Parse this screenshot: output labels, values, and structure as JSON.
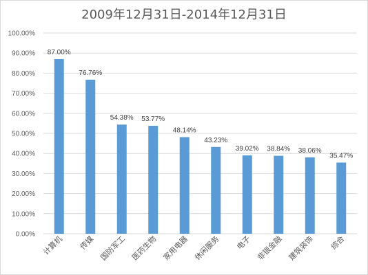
{
  "chart_data": {
    "type": "bar",
    "title": "2009年12月31日-2014年12月31日",
    "categories": [
      "计算机",
      "传媒",
      "国防军工",
      "医药生物",
      "家用电器",
      "休闲服务",
      "电子",
      "非银金融",
      "建筑装饰",
      "综合"
    ],
    "values": [
      87.0,
      76.76,
      54.38,
      53.77,
      48.14,
      43.23,
      39.02,
      38.84,
      38.06,
      35.47
    ],
    "data_labels": [
      "87.00%",
      "76.76%",
      "54.38%",
      "53.77%",
      "48.14%",
      "43.23%",
      "39.02%",
      "38.84%",
      "38.06%",
      "35.47%"
    ],
    "y_ticks": [
      "0.00%",
      "10.00%",
      "20.00%",
      "30.00%",
      "40.00%",
      "50.00%",
      "60.00%",
      "70.00%",
      "80.00%",
      "90.00%",
      "100.00%"
    ],
    "ylim": [
      0,
      100
    ],
    "grid": true,
    "bar_color": "#5b9bd5",
    "xlabel": "",
    "ylabel": ""
  }
}
